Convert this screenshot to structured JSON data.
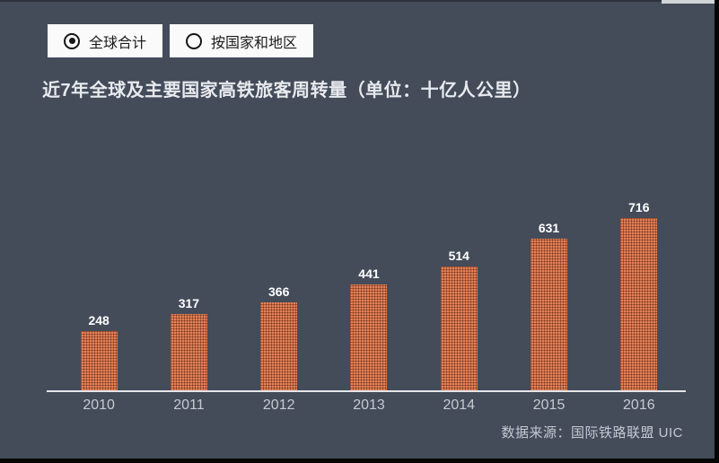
{
  "toggle": {
    "options": [
      {
        "label": "全球合计",
        "selected": true
      },
      {
        "label": "按国家和地区",
        "selected": false
      }
    ]
  },
  "title": "近7年全球及主要国家高铁旅客周转量（单位：十亿人公里）",
  "source": "数据来源：国际铁路联盟 UIC",
  "chart_data": {
    "type": "bar",
    "categories": [
      "2010",
      "2011",
      "2012",
      "2013",
      "2014",
      "2015",
      "2016"
    ],
    "values": [
      248,
      317,
      366,
      441,
      514,
      631,
      716
    ],
    "title": "近7年全球及主要国家高铁旅客周转量（单位：十亿人公里）",
    "xlabel": "",
    "ylabel": "",
    "ylim": [
      0,
      750
    ],
    "grid": false,
    "legend_position": "none",
    "value_labels_shown": true
  },
  "colors": {
    "background": "#444c5a",
    "bar": "#e5835a",
    "bar_grid_texture": "#a8552f",
    "axis_line": "#e3e5e8",
    "tick_label": "#c5cad1",
    "value_label": "#ffffff",
    "title_text": "#e7eaee",
    "button_bg": "#fafafa",
    "button_text": "#1c1c1c",
    "source_text": "#c5cad1"
  }
}
